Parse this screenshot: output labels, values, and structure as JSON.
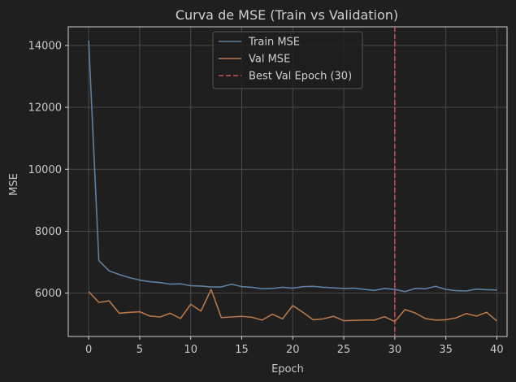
{
  "chart_data": {
    "type": "line",
    "title": "Curva de MSE (Train vs Validation)",
    "xlabel": "Epoch",
    "ylabel": "MSE",
    "xlim": [
      -2,
      41
    ],
    "ylim": [
      4600,
      14600
    ],
    "xticks": [
      0,
      5,
      10,
      15,
      20,
      25,
      30,
      35,
      40
    ],
    "yticks": [
      6000,
      8000,
      10000,
      12000,
      14000
    ],
    "grid": true,
    "legend_position": "top-center",
    "x": [
      0,
      1,
      2,
      3,
      4,
      5,
      6,
      7,
      8,
      9,
      10,
      11,
      12,
      13,
      14,
      15,
      16,
      17,
      18,
      19,
      20,
      21,
      22,
      23,
      24,
      25,
      26,
      27,
      28,
      29,
      30,
      31,
      32,
      33,
      34,
      35,
      36,
      37,
      38,
      39,
      40
    ],
    "series": [
      {
        "name": "Train MSE",
        "color": "#5b80a1",
        "values": [
          14150,
          7050,
          6720,
          6600,
          6500,
          6420,
          6370,
          6340,
          6290,
          6300,
          6240,
          6230,
          6200,
          6200,
          6290,
          6210,
          6190,
          6140,
          6150,
          6190,
          6160,
          6210,
          6220,
          6190,
          6170,
          6150,
          6160,
          6120,
          6090,
          6150,
          6120,
          6050,
          6150,
          6140,
          6220,
          6120,
          6080,
          6070,
          6130,
          6110,
          6100
        ]
      },
      {
        "name": "Val MSE",
        "color": "#b5774b",
        "values": [
          6050,
          5700,
          5750,
          5350,
          5380,
          5400,
          5260,
          5230,
          5350,
          5180,
          5640,
          5420,
          6120,
          5210,
          5230,
          5250,
          5220,
          5130,
          5320,
          5170,
          5600,
          5380,
          5140,
          5170,
          5250,
          5110,
          5120,
          5130,
          5130,
          5240,
          5080,
          5470,
          5360,
          5180,
          5130,
          5140,
          5200,
          5340,
          5260,
          5380,
          5100
        ]
      }
    ],
    "vlines": [
      {
        "name": "Best Val Epoch (30)",
        "x": 30,
        "color": "#c44e52"
      }
    ]
  }
}
